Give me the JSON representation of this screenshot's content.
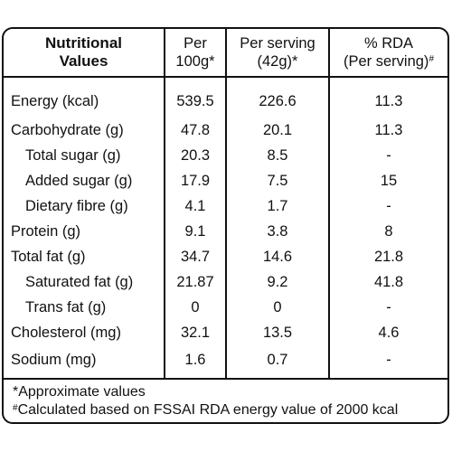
{
  "header": {
    "col1_line1": "Nutritional",
    "col1_line2": "Values",
    "col2_line1": "Per",
    "col2_line2": "100g*",
    "col3_line1": "Per serving",
    "col3_line2": "(42g)*",
    "col4_line1": "% RDA",
    "col4_line2": "(Per serving)",
    "col4_mark": "#"
  },
  "rows": [
    {
      "label": "Energy (kcal)",
      "per100g": "539.5",
      "serving": "226.6",
      "rda": "11.3"
    },
    {
      "label": "Carbohydrate (g)",
      "per100g": "47.8",
      "serving": "20.1",
      "rda": "11.3"
    },
    {
      "label": "Total sugar (g)",
      "per100g": "20.3",
      "serving": "8.5",
      "rda": "-"
    },
    {
      "label": "Added sugar (g)",
      "per100g": "17.9",
      "serving": "7.5",
      "rda": "15"
    },
    {
      "label": "Dietary fibre (g)",
      "per100g": "4.1",
      "serving": "1.7",
      "rda": "-"
    },
    {
      "label": "Protein (g)",
      "per100g": "9.1",
      "serving": "3.8",
      "rda": "8"
    },
    {
      "label": "Total fat (g)",
      "per100g": "34.7",
      "serving": "14.6",
      "rda": "21.8"
    },
    {
      "label": "Saturated fat (g)",
      "per100g": "21.87",
      "serving": "9.2",
      "rda": "41.8"
    },
    {
      "label": "Trans fat (g)",
      "per100g": "0",
      "serving": "0",
      "rda": "-"
    },
    {
      "label": "Cholesterol (mg)",
      "per100g": "32.1",
      "serving": "13.5",
      "rda": "4.6"
    },
    {
      "label": "Sodium (mg)",
      "per100g": "1.6",
      "serving": "0.7",
      "rda": "-"
    }
  ],
  "footnotes": {
    "line1": "*Approximate values",
    "line2_mark": "#",
    "line2": "Calculated based on FSSAI RDA energy value of 2000 kcal"
  }
}
